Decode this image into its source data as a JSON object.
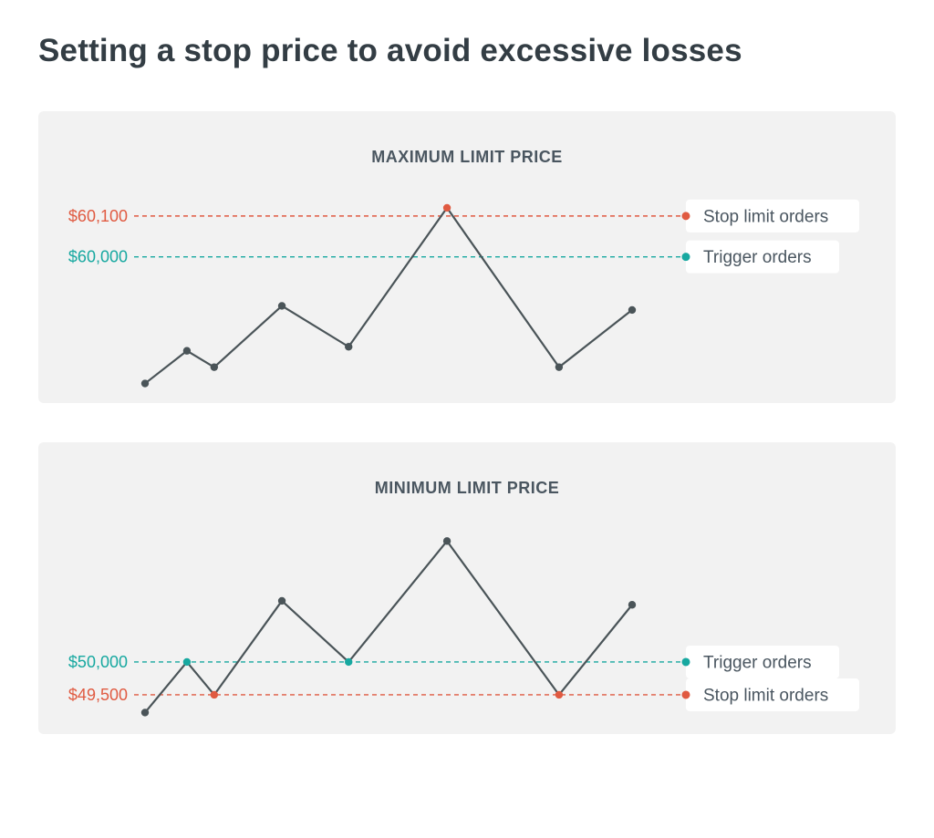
{
  "title": "Setting a stop price to avoid excessive losses",
  "colors": {
    "stop": "#e05a41",
    "trigger": "#17a8a0",
    "line": "#4a5458",
    "label_bg": "#ffffff",
    "label_text": "#4a5660"
  },
  "chart_data": [
    {
      "type": "line",
      "title": "MAXIMUM LIMIT PRICE",
      "x": [
        1,
        2,
        3,
        4,
        5,
        6,
        7,
        8
      ],
      "values": [
        59690,
        59770,
        59730,
        59880,
        59780,
        60120,
        59730,
        59870
      ],
      "ylim": [
        59660,
        60160
      ],
      "point_colors": [
        "line",
        "line",
        "line",
        "line",
        "line",
        "stop",
        "line",
        "line"
      ],
      "reference_lines": [
        {
          "value": 60100,
          "value_label": "$60,100",
          "legend": "Stop limit orders",
          "color": "stop"
        },
        {
          "value": 60000,
          "value_label": "$60,000",
          "legend": "Trigger orders",
          "color": "trigger"
        }
      ]
    },
    {
      "type": "line",
      "title": "MINIMUM LIMIT PRICE",
      "x": [
        1,
        2,
        3,
        4,
        5,
        6,
        7,
        8
      ],
      "values": [
        49230,
        50000,
        49500,
        50930,
        50000,
        51840,
        49500,
        50870
      ],
      "ylim": [
        49000,
        52400
      ],
      "point_colors": [
        "line",
        "trigger",
        "stop",
        "line",
        "trigger",
        "line",
        "stop",
        "line"
      ],
      "reference_lines": [
        {
          "value": 50000,
          "value_label": "$50,000",
          "legend": "Trigger orders",
          "color": "trigger"
        },
        {
          "value": 49500,
          "value_label": "$49,500",
          "legend": "Stop limit orders",
          "color": "stop"
        }
      ]
    }
  ]
}
